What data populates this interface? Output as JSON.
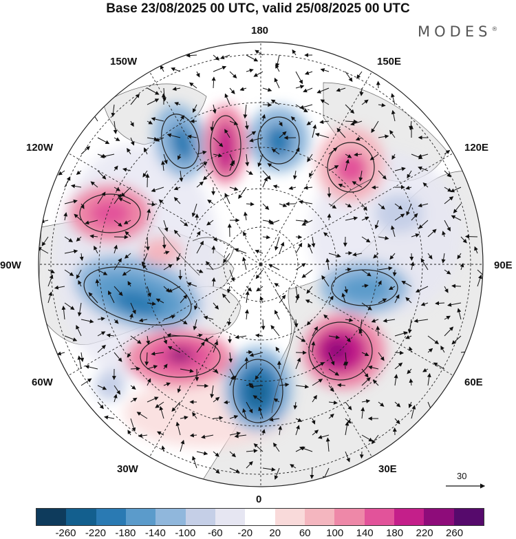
{
  "header": {
    "title": "Base 23/08/2025 00 UTC, valid 25/08/2025 00 UTC",
    "brand": "MODES",
    "brand_mark": "®"
  },
  "map": {
    "longitude_labels": {
      "top": "180",
      "bottom": "0",
      "left": "90W",
      "right": "90E",
      "upper_left_1": "150W",
      "upper_left_2": "120W",
      "lower_left_1": "60W",
      "lower_left_2": "30W",
      "upper_right_1": "150E",
      "upper_right_2": "120E",
      "lower_right_1": "60E",
      "lower_right_2": "30E"
    },
    "reference_vector_label": "30"
  },
  "colorbar": {
    "colors": [
      "#0e3b5c",
      "#135f8e",
      "#2a7ab3",
      "#5b9bcb",
      "#90b7dc",
      "#c5cfe7",
      "#e6e6f2",
      "#ffffff",
      "#f9dada",
      "#f4b6bf",
      "#ee88a8",
      "#e2539a",
      "#c41f8a",
      "#8e0c7a",
      "#560a6c"
    ],
    "ticks": [
      "-260",
      "-220",
      "-180",
      "-140",
      "-100",
      "-60",
      "-20",
      "20",
      "60",
      "100",
      "140",
      "180",
      "220",
      "260"
    ]
  }
}
